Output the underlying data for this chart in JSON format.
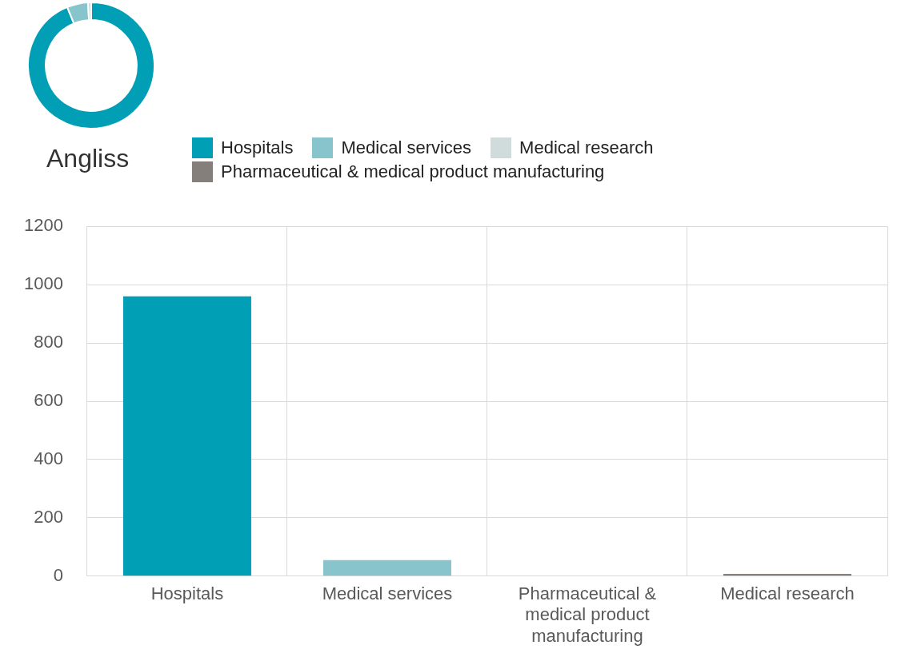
{
  "chart_data": [
    {
      "type": "donut",
      "title": "Angliss",
      "categories": [
        "Hospitals",
        "Medical services",
        "Medical research",
        "Pharmaceutical & medical product manufacturing"
      ],
      "values": [
        93.8,
        5.4,
        0.8,
        0
      ],
      "colors": [
        "#009fb5",
        "#88c4cc",
        "#cfdcdb",
        "#857f7c"
      ],
      "legend": "bottom"
    },
    {
      "type": "bar",
      "categories": [
        "Hospitals",
        "Medical services",
        "Pharmaceutical & medical product manufacturing",
        "Medical research"
      ],
      "values": [
        960,
        55,
        0,
        8
      ],
      "colors": [
        "#009fb5",
        "#88c4cc",
        "#cfdcdb",
        "#857f7c"
      ],
      "ylim": [
        0,
        1200
      ],
      "yticks": [
        0,
        200,
        400,
        600,
        800,
        1000,
        1200
      ],
      "grid": true
    }
  ]
}
